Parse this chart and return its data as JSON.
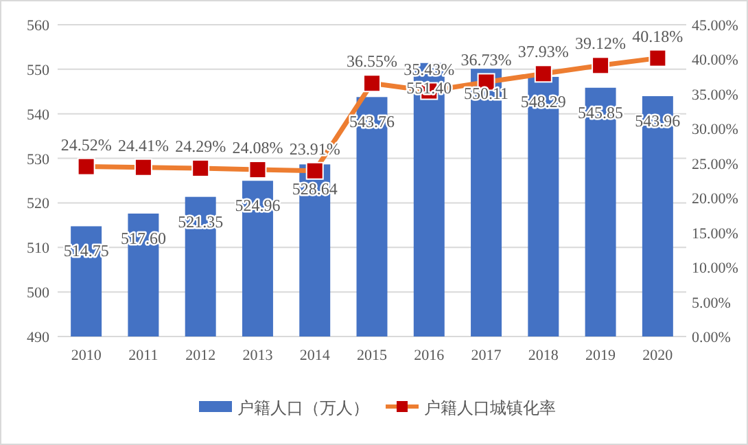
{
  "chart_data": {
    "type": "bar",
    "categories": [
      "2010",
      "2011",
      "2012",
      "2013",
      "2014",
      "2015",
      "2016",
      "2017",
      "2018",
      "2019",
      "2020"
    ],
    "series": [
      {
        "name": "户籍人口（万人）",
        "color": "#4472c4",
        "values": [
          514.75,
          517.6,
          521.35,
          524.96,
          528.64,
          543.76,
          551.4,
          550.11,
          548.29,
          545.85,
          543.96
        ],
        "value_labels": [
          "514.75",
          "517.60",
          "521.35",
          "524.96",
          "528.64",
          "543.76",
          "551.40",
          "550.11",
          "548.29",
          "545.85",
          "543.96"
        ]
      },
      {
        "name": "户籍人口城镇化率",
        "type": "line",
        "axis": "y2",
        "color": "#ed7d31",
        "marker": "square",
        "values": [
          24.52,
          24.41,
          24.29,
          24.08,
          23.91,
          36.55,
          35.43,
          36.73,
          37.93,
          39.12,
          40.18
        ],
        "value_labels": [
          "24.52%",
          "24.41%",
          "24.29%",
          "24.08%",
          "23.91%",
          "36.55%",
          "35.43%",
          "36.73%",
          "37.93%",
          "39.12%",
          "40.18%"
        ]
      }
    ],
    "ylim": [
      490,
      560
    ],
    "yticks": [
      490,
      500,
      510,
      520,
      530,
      540,
      550,
      560
    ],
    "y2lim": [
      0,
      45
    ],
    "y2ticks": [
      {
        "value": 0,
        "label": "0.00%"
      },
      {
        "value": 5,
        "label": "5.00%"
      },
      {
        "value": 10,
        "label": "10.00%"
      },
      {
        "value": 15,
        "label": "15.00%"
      },
      {
        "value": 20,
        "label": "20.00%"
      },
      {
        "value": 25,
        "label": "25.00%"
      },
      {
        "value": 30,
        "label": "30.00%"
      },
      {
        "value": 35,
        "label": "35.00%"
      },
      {
        "value": 40,
        "label": "40.00%"
      },
      {
        "value": 45,
        "label": "45.00%"
      }
    ],
    "data_labels": true,
    "grid": "y",
    "legend": "bottom"
  }
}
